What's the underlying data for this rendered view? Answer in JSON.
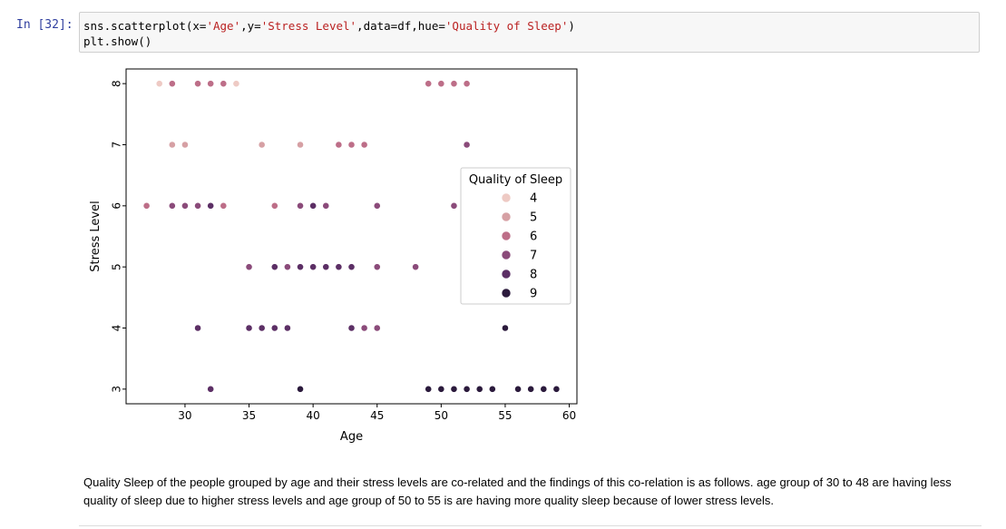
{
  "cell_in": {
    "prompt": "In [32]:",
    "code": {
      "line1": [
        {
          "t": "sns.scatterplot(x=",
          "k": "plain"
        },
        {
          "t": "'Age'",
          "k": "str"
        },
        {
          "t": ",y=",
          "k": "plain"
        },
        {
          "t": "'Stress Level'",
          "k": "str"
        },
        {
          "t": ",data=df,hue=",
          "k": "plain"
        },
        {
          "t": "'Quality of Sleep'",
          "k": "str"
        },
        {
          "t": ")",
          "k": "plain"
        }
      ],
      "line2": "plt.show()"
    }
  },
  "colors": {
    "prompt": "#303f9f",
    "string": "#ba2121",
    "hue": {
      "4": "#eecac4",
      "5": "#d6a0a4",
      "6": "#bd6e88",
      "7": "#8b4b7a",
      "8": "#5c2f65",
      "9": "#2b1a3c"
    }
  },
  "chart_data": {
    "type": "scatter",
    "xlabel": "Age",
    "ylabel": "Stress Level",
    "xlim": [
      25.4,
      60.6
    ],
    "ylim": [
      2.76,
      8.24
    ],
    "xticks": [
      30,
      35,
      40,
      45,
      50,
      55,
      60
    ],
    "yticks": [
      3,
      4,
      5,
      6,
      7,
      8
    ],
    "grid": false,
    "legend": {
      "title": "Quality of Sleep",
      "placement": "right",
      "entries": [
        "4",
        "5",
        "6",
        "7",
        "8",
        "9"
      ]
    },
    "points": [
      {
        "x": 28,
        "y": 8,
        "hue": 4
      },
      {
        "x": 29,
        "y": 8,
        "hue": 6
      },
      {
        "x": 31,
        "y": 8,
        "hue": 6
      },
      {
        "x": 32,
        "y": 8,
        "hue": 6
      },
      {
        "x": 33,
        "y": 8,
        "hue": 6
      },
      {
        "x": 34,
        "y": 8,
        "hue": 4
      },
      {
        "x": 49,
        "y": 8,
        "hue": 6
      },
      {
        "x": 50,
        "y": 8,
        "hue": 6
      },
      {
        "x": 51,
        "y": 8,
        "hue": 6
      },
      {
        "x": 52,
        "y": 8,
        "hue": 6
      },
      {
        "x": 29,
        "y": 7,
        "hue": 5
      },
      {
        "x": 30,
        "y": 7,
        "hue": 5
      },
      {
        "x": 36,
        "y": 7,
        "hue": 5
      },
      {
        "x": 39,
        "y": 7,
        "hue": 5
      },
      {
        "x": 42,
        "y": 7,
        "hue": 6
      },
      {
        "x": 43,
        "y": 7,
        "hue": 6
      },
      {
        "x": 44,
        "y": 7,
        "hue": 6
      },
      {
        "x": 52,
        "y": 7,
        "hue": 7
      },
      {
        "x": 27,
        "y": 6,
        "hue": 6
      },
      {
        "x": 29,
        "y": 6,
        "hue": 7
      },
      {
        "x": 30,
        "y": 6,
        "hue": 7
      },
      {
        "x": 31,
        "y": 6,
        "hue": 7
      },
      {
        "x": 32,
        "y": 6,
        "hue": 8
      },
      {
        "x": 33,
        "y": 6,
        "hue": 6
      },
      {
        "x": 37,
        "y": 6,
        "hue": 6
      },
      {
        "x": 39,
        "y": 6,
        "hue": 7
      },
      {
        "x": 40,
        "y": 6,
        "hue": 8
      },
      {
        "x": 41,
        "y": 6,
        "hue": 7
      },
      {
        "x": 45,
        "y": 6,
        "hue": 7
      },
      {
        "x": 51,
        "y": 6,
        "hue": 7
      },
      {
        "x": 35,
        "y": 5,
        "hue": 7
      },
      {
        "x": 37,
        "y": 5,
        "hue": 8
      },
      {
        "x": 38,
        "y": 5,
        "hue": 7
      },
      {
        "x": 39,
        "y": 5,
        "hue": 8
      },
      {
        "x": 40,
        "y": 5,
        "hue": 8
      },
      {
        "x": 41,
        "y": 5,
        "hue": 8
      },
      {
        "x": 42,
        "y": 5,
        "hue": 8
      },
      {
        "x": 43,
        "y": 5,
        "hue": 8
      },
      {
        "x": 45,
        "y": 5,
        "hue": 7
      },
      {
        "x": 48,
        "y": 5,
        "hue": 7
      },
      {
        "x": 31,
        "y": 4,
        "hue": 8
      },
      {
        "x": 35,
        "y": 4,
        "hue": 8
      },
      {
        "x": 36,
        "y": 4,
        "hue": 8
      },
      {
        "x": 37,
        "y": 4,
        "hue": 8
      },
      {
        "x": 38,
        "y": 4,
        "hue": 8
      },
      {
        "x": 43,
        "y": 4,
        "hue": 8
      },
      {
        "x": 44,
        "y": 4,
        "hue": 7
      },
      {
        "x": 45,
        "y": 4,
        "hue": 7
      },
      {
        "x": 55,
        "y": 4,
        "hue": 9
      },
      {
        "x": 32,
        "y": 3,
        "hue": 8
      },
      {
        "x": 39,
        "y": 3,
        "hue": 9
      },
      {
        "x": 49,
        "y": 3,
        "hue": 9
      },
      {
        "x": 50,
        "y": 3,
        "hue": 9
      },
      {
        "x": 51,
        "y": 3,
        "hue": 9
      },
      {
        "x": 52,
        "y": 3,
        "hue": 9
      },
      {
        "x": 53,
        "y": 3,
        "hue": 9
      },
      {
        "x": 54,
        "y": 3,
        "hue": 9
      },
      {
        "x": 56,
        "y": 3,
        "hue": 9
      },
      {
        "x": 57,
        "y": 3,
        "hue": 9
      },
      {
        "x": 58,
        "y": 3,
        "hue": 9
      },
      {
        "x": 59,
        "y": 3,
        "hue": 9
      }
    ]
  },
  "markdown": {
    "text": "Quality Sleep of the people grouped by age and their stress levels are co-related and the findings of this co-relation is as follows. age group of 30 to 48 are having less quality of sleep due to higher stress levels and age group of 50 to 55 is are having more quality sleep because of lower stress levels."
  }
}
